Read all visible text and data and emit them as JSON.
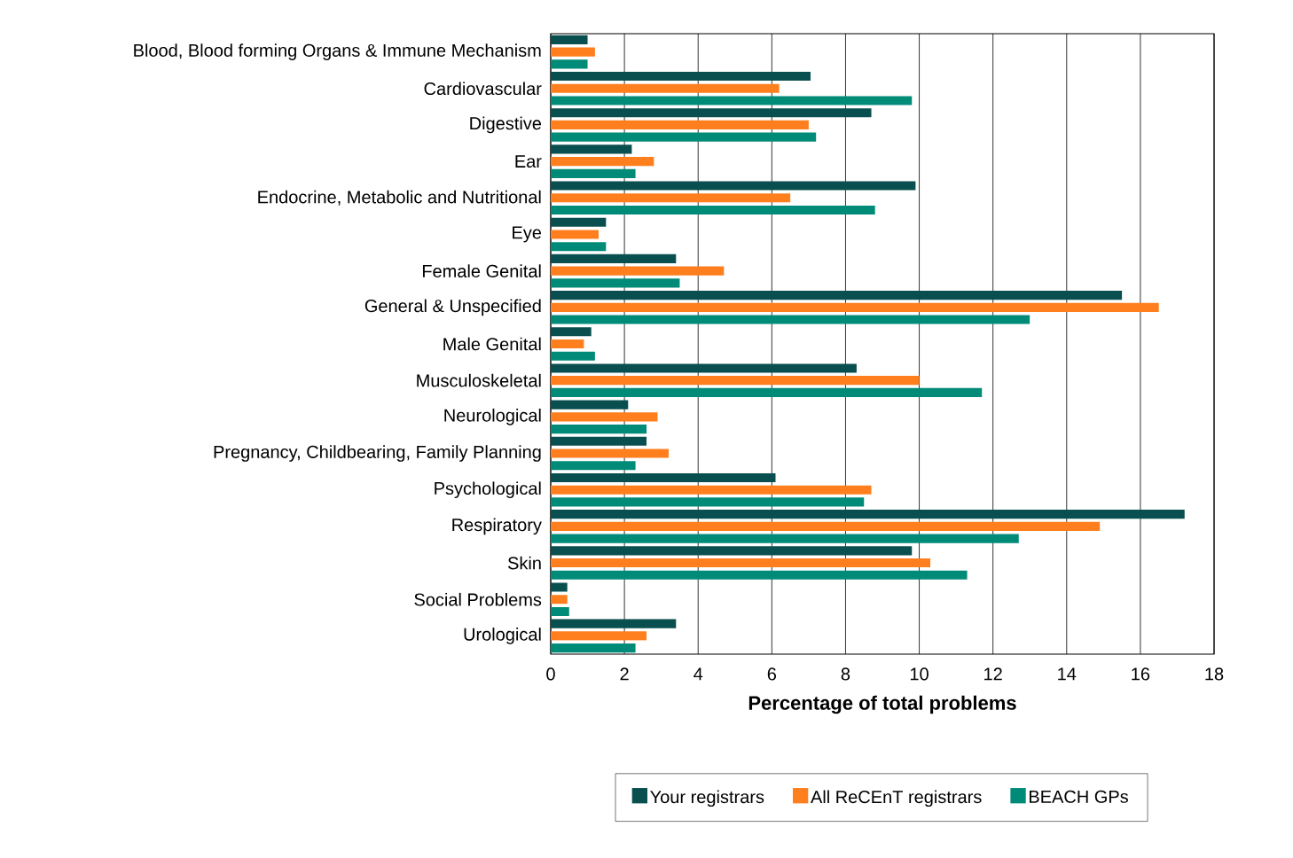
{
  "chart_data": {
    "type": "bar",
    "orientation": "horizontal",
    "xlabel": "Percentage of total problems",
    "categories": [
      "Blood, Blood forming Organs & Immune Mechanism",
      "Cardiovascular",
      "Digestive",
      "Ear",
      "Endocrine, Metabolic and Nutritional",
      "Eye",
      "Female Genital",
      "General & Unspecified",
      "Male Genital",
      "Musculoskeletal",
      "Neurological",
      "Pregnancy, Childbearing, Family Planning",
      "Psychological",
      "Respiratory",
      "Skin",
      "Social Problems",
      "Urological"
    ],
    "series": [
      {
        "name": "Your registrars",
        "color": "#0a4f4f",
        "values": [
          1.0,
          7.05,
          8.7,
          2.2,
          9.9,
          1.5,
          3.4,
          15.5,
          1.1,
          8.3,
          2.1,
          2.6,
          6.1,
          17.2,
          9.8,
          0.45,
          3.4
        ]
      },
      {
        "name": "All ReCEnT registrars",
        "color": "#ff7f1e",
        "values": [
          1.2,
          6.2,
          7.0,
          2.8,
          6.5,
          1.3,
          4.7,
          16.5,
          0.9,
          10.0,
          2.9,
          3.2,
          8.7,
          14.9,
          10.3,
          0.45,
          2.6
        ]
      },
      {
        "name": "BEACH GPs",
        "color": "#008b78",
        "values": [
          1.0,
          9.8,
          7.2,
          2.3,
          8.8,
          1.5,
          3.5,
          13.0,
          1.2,
          11.7,
          2.6,
          2.3,
          8.5,
          12.7,
          11.3,
          0.5,
          2.3
        ]
      }
    ],
    "xlim": [
      0,
      18
    ],
    "xticks": [
      0,
      2,
      4,
      6,
      8,
      10,
      12,
      14,
      16,
      18
    ],
    "grid": "x",
    "legend": "bottom"
  }
}
